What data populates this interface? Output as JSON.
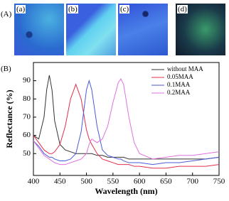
{
  "figure": {
    "panel_a_label": "(A)",
    "panel_b_label": "(B)",
    "image_labels": [
      "(a)",
      "(b)",
      "(c)",
      "(d)"
    ]
  },
  "chart_data": {
    "type": "line",
    "x_label": "Wavelength (nm)",
    "y_label": "Reflectance (%)",
    "x": [
      400,
      410,
      420,
      425,
      430,
      435,
      440,
      450,
      460,
      470,
      480,
      490,
      500,
      505,
      510,
      520,
      530,
      540,
      550,
      560,
      565,
      570,
      580,
      590,
      600,
      625,
      650,
      675,
      700,
      725,
      750
    ],
    "series": [
      {
        "name": "without MAA",
        "color": "#333333",
        "values": [
          60,
          58,
          70,
          85,
          93,
          85,
          68,
          55,
          52,
          51,
          50,
          50,
          50,
          50,
          50,
          49,
          49,
          48,
          48,
          48,
          48,
          48,
          47,
          47,
          47,
          47,
          47,
          47,
          47,
          47,
          48
        ]
      },
      {
        "name": "0.05MAA",
        "color": "#e0304a",
        "values": [
          60,
          56,
          52,
          51,
          50,
          50,
          51,
          55,
          65,
          80,
          88,
          80,
          63,
          58,
          55,
          50,
          47,
          46,
          45,
          44,
          44,
          44,
          44,
          43,
          43,
          42,
          42,
          43,
          43,
          43,
          44
        ]
      },
      {
        "name": "0.1MAA",
        "color": "#4a5bd6",
        "values": [
          57,
          54,
          50,
          49,
          48,
          48,
          47,
          46,
          46,
          47,
          50,
          62,
          85,
          90,
          85,
          65,
          52,
          49,
          48,
          47,
          47,
          46,
          45,
          45,
          45,
          44,
          45,
          45,
          46,
          47,
          48
        ]
      },
      {
        "name": "0.2MAA",
        "color": "#e070e0",
        "values": [
          57,
          53,
          49,
          48,
          47,
          46,
          45,
          44,
          44,
          45,
          46,
          47,
          50,
          55,
          58,
          56,
          58,
          65,
          78,
          89,
          91,
          88,
          70,
          56,
          50,
          47,
          48,
          49,
          49,
          50,
          51
        ]
      }
    ],
    "xlim": [
      400,
      750
    ],
    "xticks": [
      400,
      450,
      500,
      550,
      600,
      650,
      700,
      750
    ],
    "ylim": [
      38,
      100
    ],
    "yticks": [
      50,
      60,
      70,
      80,
      90
    ],
    "legend": "upper right"
  }
}
